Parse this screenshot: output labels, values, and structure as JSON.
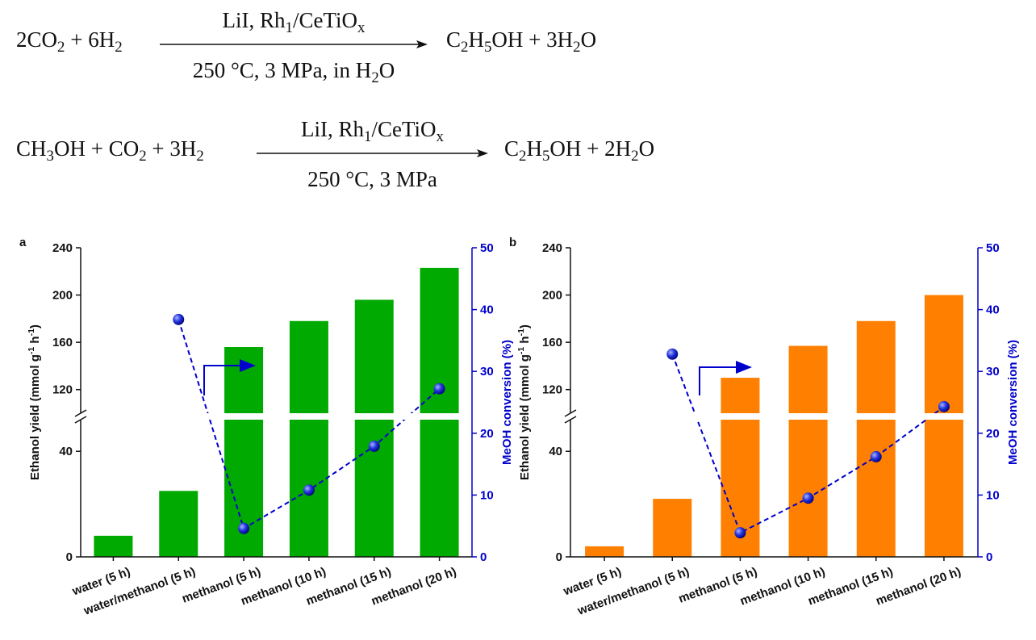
{
  "equations": [
    {
      "left": [
        {
          "text": "2CO"
        },
        {
          "sub": "2"
        },
        {
          "text": " + 6H"
        },
        {
          "sub": "2"
        }
      ],
      "above": [
        {
          "text": "LiI, Rh"
        },
        {
          "sub": "1"
        },
        {
          "text": "/CeTiO"
        },
        {
          "sub": "x"
        }
      ],
      "below": [
        {
          "text": "250 °C, 3 MPa, in H"
        },
        {
          "sub": "2"
        },
        {
          "text": "O"
        }
      ],
      "right": [
        {
          "text": "C"
        },
        {
          "sub": "2"
        },
        {
          "text": "H"
        },
        {
          "sub": "5"
        },
        {
          "text": "OH + 3H"
        },
        {
          "sub": "2"
        },
        {
          "text": "O"
        }
      ]
    },
    {
      "left": [
        {
          "text": "CH"
        },
        {
          "sub": "3"
        },
        {
          "text": "OH + CO"
        },
        {
          "sub": "2"
        },
        {
          "text": " + 3H"
        },
        {
          "sub": "2"
        }
      ],
      "above": [
        {
          "text": "LiI, Rh"
        },
        {
          "sub": "1"
        },
        {
          "text": "/CeTiO"
        },
        {
          "sub": "x"
        }
      ],
      "below": [
        {
          "text": "250 °C, 3 MPa"
        }
      ],
      "right": [
        {
          "text": "C"
        },
        {
          "sub": "2"
        },
        {
          "text": "H"
        },
        {
          "sub": "5"
        },
        {
          "text": "OH + 2H"
        },
        {
          "sub": "2"
        },
        {
          "text": "O"
        }
      ]
    }
  ],
  "chart_data": [
    {
      "type": "bar",
      "panel": "a",
      "categories": [
        "water (5 h)",
        "water/methanol (5 h)",
        "methanol (5 h)",
        "methanol (10 h)",
        "methanol (15 h)",
        "methanol (20 h)"
      ],
      "ylabel": [
        {
          "text": "Ethanol yield (mmol g"
        },
        {
          "sup": "-1"
        },
        {
          "text": " h"
        },
        {
          "sup": "-1"
        },
        {
          "text": ")"
        }
      ],
      "y2label": "MeOH conversion (%)",
      "axis_segments": [
        {
          "ylim": [
            0,
            52
          ],
          "yticks": [
            0,
            40
          ]
        },
        {
          "ylim": [
            100,
            240
          ],
          "yticks": [
            120,
            160,
            200,
            240
          ]
        }
      ],
      "y2lim": [
        0,
        50
      ],
      "y2ticks": [
        0,
        10,
        20,
        30,
        40,
        50
      ],
      "series": [
        {
          "type": "bar",
          "color": "#00aa00",
          "values": [
            8,
            25,
            156,
            178,
            196,
            223
          ]
        },
        {
          "type": "line",
          "axis": "y2",
          "color": "#0000cc",
          "values": [
            null,
            38.4,
            4.6,
            10.8,
            17.9,
            27.2
          ]
        }
      ]
    },
    {
      "type": "bar",
      "panel": "b",
      "categories": [
        "water (5 h)",
        "water/methanol (5 h)",
        "methanol (5 h)",
        "methanol (10 h)",
        "methanol (15 h)",
        "methanol (20 h)"
      ],
      "ylabel": [
        {
          "text": "Ethanol yield (mmol g"
        },
        {
          "sup": "-1"
        },
        {
          "text": " h"
        },
        {
          "sup": "-1"
        },
        {
          "text": ")"
        }
      ],
      "y2label": "MeOH conversion (%)",
      "axis_segments": [
        {
          "ylim": [
            0,
            52
          ],
          "yticks": [
            0,
            40
          ]
        },
        {
          "ylim": [
            100,
            240
          ],
          "yticks": [
            120,
            160,
            200,
            240
          ]
        }
      ],
      "y2lim": [
        0,
        50
      ],
      "y2ticks": [
        0,
        10,
        20,
        30,
        40,
        50
      ],
      "series": [
        {
          "type": "bar",
          "color": "#ff8000",
          "values": [
            4,
            22,
            130,
            157,
            178,
            200
          ]
        },
        {
          "type": "line",
          "axis": "y2",
          "color": "#0000cc",
          "values": [
            null,
            32.8,
            3.9,
            9.5,
            16.2,
            24.3
          ]
        }
      ]
    }
  ]
}
